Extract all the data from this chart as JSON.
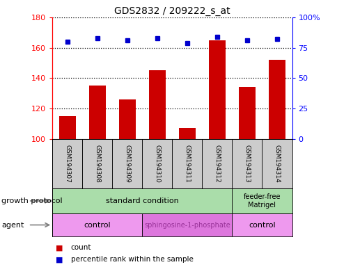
{
  "title": "GDS2832 / 209222_s_at",
  "samples": [
    "GSM194307",
    "GSM194308",
    "GSM194309",
    "GSM194310",
    "GSM194311",
    "GSM194312",
    "GSM194313",
    "GSM194314"
  ],
  "counts": [
    115,
    135,
    126,
    145,
    107,
    165,
    134,
    152
  ],
  "percentiles": [
    80,
    83,
    81,
    83,
    79,
    84,
    81,
    82
  ],
  "ylim_left": [
    100,
    180
  ],
  "ylim_right": [
    0,
    100
  ],
  "yticks_left": [
    100,
    120,
    140,
    160,
    180
  ],
  "yticks_right": [
    0,
    25,
    50,
    75,
    100
  ],
  "ytick_labels_right": [
    "0",
    "25",
    "50",
    "75",
    "100%"
  ],
  "bar_color": "#cc0000",
  "dot_color": "#0000cc",
  "growth_protocol_label": "growth protocol",
  "growth_protocol_groups": [
    {
      "label": "standard condition",
      "start": 0,
      "end": 6,
      "color": "#aaddaa"
    },
    {
      "label": "feeder-free\nMatrigel",
      "start": 6,
      "end": 8,
      "color": "#aaddaa"
    }
  ],
  "agent_label": "agent",
  "agent_groups": [
    {
      "label": "control",
      "start": 0,
      "end": 3,
      "color": "#ee99ee"
    },
    {
      "label": "sphingosine-1-phosphate",
      "start": 3,
      "end": 6,
      "color": "#dd77dd"
    },
    {
      "label": "control",
      "start": 6,
      "end": 8,
      "color": "#ee99ee"
    }
  ],
  "legend_items": [
    {
      "color": "#cc0000",
      "label": "count"
    },
    {
      "color": "#0000cc",
      "label": "percentile rank within the sample"
    }
  ],
  "cell_bg": "#cccccc",
  "cell_face": "#cccccc"
}
